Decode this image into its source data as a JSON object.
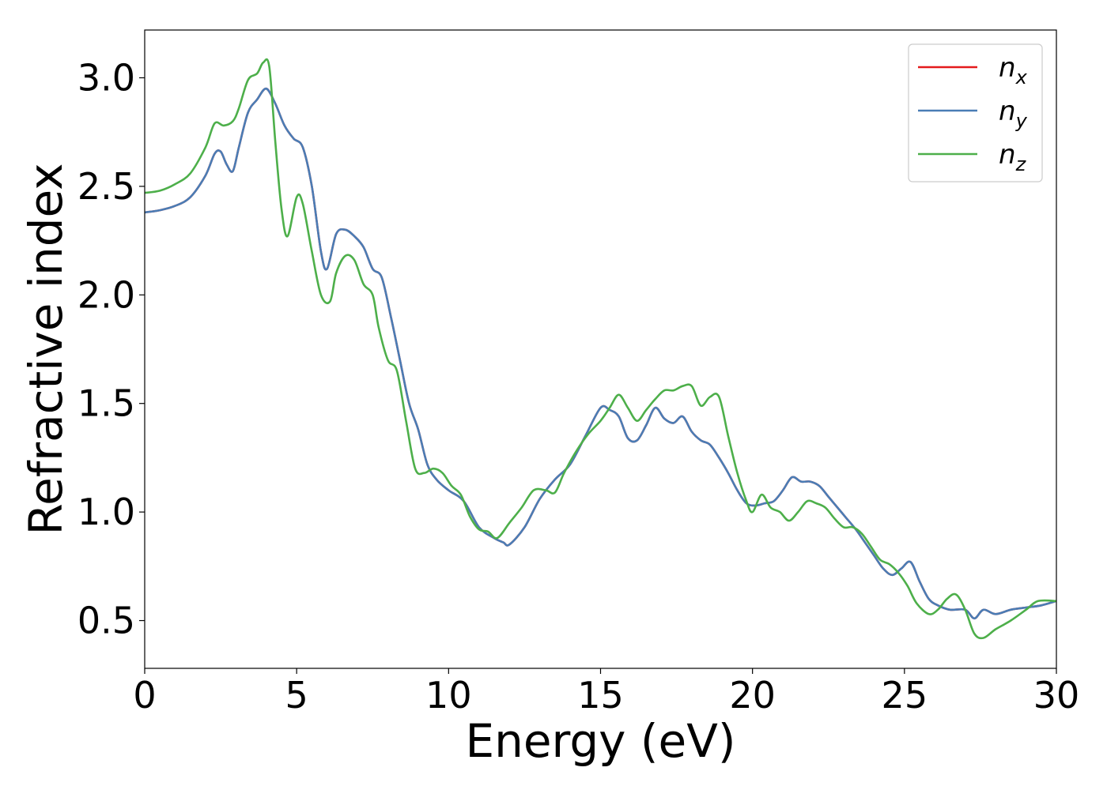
{
  "chart_data": {
    "type": "line",
    "xlabel": "Energy (eV)",
    "ylabel": "Refractive index",
    "xlim": [
      0,
      30
    ],
    "ylim": [
      0.28,
      3.22
    ],
    "xticks": [
      "0",
      "5",
      "10",
      "15",
      "20",
      "25",
      "30"
    ],
    "yticks": [
      "0.5",
      "1.0",
      "1.5",
      "2.0",
      "2.5",
      "3.0"
    ],
    "grid": false,
    "legend_position": "top-right",
    "series": [
      {
        "name": "n",
        "subscript": "x",
        "color": "#e41a1c",
        "x": [
          0,
          0.5,
          1.0,
          1.5,
          2.0,
          2.3,
          2.5,
          2.7,
          2.9,
          3.1,
          3.4,
          3.7,
          4.0,
          4.3,
          4.6,
          4.9,
          5.2,
          5.5,
          5.8,
          6.0,
          6.3,
          6.6,
          6.9,
          7.2,
          7.5,
          7.8,
          8.1,
          8.4,
          8.7,
          9.0,
          9.3,
          9.6,
          10.0,
          10.5,
          11.0,
          11.5,
          11.8,
          12.0,
          12.5,
          13.0,
          13.5,
          14.0,
          14.5,
          15.0,
          15.3,
          15.6,
          15.9,
          16.2,
          16.5,
          16.8,
          17.1,
          17.4,
          17.7,
          18.0,
          18.3,
          18.6,
          18.9,
          19.2,
          19.5,
          19.8,
          20.1,
          20.4,
          20.7,
          21.0,
          21.3,
          21.6,
          21.9,
          22.2,
          22.5,
          22.8,
          23.1,
          23.4,
          23.7,
          24.0,
          24.3,
          24.6,
          24.9,
          25.2,
          25.5,
          25.8,
          26.1,
          26.5,
          27.0,
          27.3,
          27.6,
          28.0,
          28.5,
          29.0,
          29.5,
          30.0
        ],
        "y": [
          2.38,
          2.39,
          2.41,
          2.45,
          2.55,
          2.65,
          2.66,
          2.6,
          2.57,
          2.68,
          2.84,
          2.9,
          2.95,
          2.88,
          2.78,
          2.72,
          2.68,
          2.5,
          2.2,
          2.12,
          2.28,
          2.3,
          2.27,
          2.22,
          2.12,
          2.08,
          1.9,
          1.7,
          1.5,
          1.38,
          1.22,
          1.15,
          1.1,
          1.05,
          0.93,
          0.88,
          0.86,
          0.85,
          0.93,
          1.06,
          1.15,
          1.22,
          1.35,
          1.48,
          1.47,
          1.44,
          1.34,
          1.33,
          1.4,
          1.48,
          1.43,
          1.41,
          1.44,
          1.37,
          1.33,
          1.31,
          1.25,
          1.18,
          1.1,
          1.04,
          1.03,
          1.04,
          1.05,
          1.1,
          1.16,
          1.14,
          1.14,
          1.12,
          1.07,
          1.02,
          0.97,
          0.92,
          0.86,
          0.8,
          0.74,
          0.71,
          0.74,
          0.77,
          0.68,
          0.6,
          0.57,
          0.55,
          0.55,
          0.51,
          0.55,
          0.53,
          0.55,
          0.56,
          0.57,
          0.59
        ]
      },
      {
        "name": "n",
        "subscript": "y",
        "color": "#4a7db5",
        "x": [
          0,
          0.5,
          1.0,
          1.5,
          2.0,
          2.3,
          2.5,
          2.7,
          2.9,
          3.1,
          3.4,
          3.7,
          4.0,
          4.3,
          4.6,
          4.9,
          5.2,
          5.5,
          5.8,
          6.0,
          6.3,
          6.6,
          6.9,
          7.2,
          7.5,
          7.8,
          8.1,
          8.4,
          8.7,
          9.0,
          9.3,
          9.6,
          10.0,
          10.5,
          11.0,
          11.5,
          11.8,
          12.0,
          12.5,
          13.0,
          13.5,
          14.0,
          14.5,
          15.0,
          15.3,
          15.6,
          15.9,
          16.2,
          16.5,
          16.8,
          17.1,
          17.4,
          17.7,
          18.0,
          18.3,
          18.6,
          18.9,
          19.2,
          19.5,
          19.8,
          20.1,
          20.4,
          20.7,
          21.0,
          21.3,
          21.6,
          21.9,
          22.2,
          22.5,
          22.8,
          23.1,
          23.4,
          23.7,
          24.0,
          24.3,
          24.6,
          24.9,
          25.2,
          25.5,
          25.8,
          26.1,
          26.5,
          27.0,
          27.3,
          27.6,
          28.0,
          28.5,
          29.0,
          29.5,
          30.0
        ],
        "y": [
          2.38,
          2.39,
          2.41,
          2.45,
          2.55,
          2.65,
          2.66,
          2.6,
          2.57,
          2.68,
          2.84,
          2.9,
          2.95,
          2.88,
          2.78,
          2.72,
          2.68,
          2.5,
          2.2,
          2.12,
          2.28,
          2.3,
          2.27,
          2.22,
          2.12,
          2.08,
          1.9,
          1.7,
          1.5,
          1.38,
          1.22,
          1.15,
          1.1,
          1.05,
          0.93,
          0.88,
          0.86,
          0.85,
          0.93,
          1.06,
          1.15,
          1.22,
          1.35,
          1.48,
          1.47,
          1.44,
          1.34,
          1.33,
          1.4,
          1.48,
          1.43,
          1.41,
          1.44,
          1.37,
          1.33,
          1.31,
          1.25,
          1.18,
          1.1,
          1.04,
          1.03,
          1.04,
          1.05,
          1.1,
          1.16,
          1.14,
          1.14,
          1.12,
          1.07,
          1.02,
          0.97,
          0.92,
          0.86,
          0.8,
          0.74,
          0.71,
          0.74,
          0.77,
          0.68,
          0.6,
          0.57,
          0.55,
          0.55,
          0.51,
          0.55,
          0.53,
          0.55,
          0.56,
          0.57,
          0.59
        ]
      },
      {
        "name": "n",
        "subscript": "z",
        "color": "#4daf4a",
        "x": [
          0,
          0.5,
          1.0,
          1.5,
          2.0,
          2.3,
          2.6,
          2.9,
          3.1,
          3.4,
          3.7,
          3.9,
          4.1,
          4.3,
          4.5,
          4.7,
          5.0,
          5.2,
          5.5,
          5.8,
          6.1,
          6.3,
          6.6,
          6.9,
          7.2,
          7.5,
          7.7,
          8.0,
          8.3,
          8.6,
          8.9,
          9.2,
          9.5,
          9.8,
          10.1,
          10.4,
          10.7,
          11.0,
          11.3,
          11.6,
          12.0,
          12.4,
          12.8,
          13.2,
          13.5,
          13.8,
          14.2,
          14.6,
          15.0,
          15.3,
          15.6,
          15.9,
          16.2,
          16.5,
          16.8,
          17.1,
          17.4,
          17.7,
          18.0,
          18.3,
          18.6,
          18.9,
          19.2,
          19.5,
          19.8,
          20.0,
          20.3,
          20.6,
          20.9,
          21.2,
          21.5,
          21.8,
          22.1,
          22.4,
          22.7,
          23.0,
          23.3,
          23.6,
          23.9,
          24.2,
          24.5,
          24.8,
          25.1,
          25.4,
          25.8,
          26.1,
          26.4,
          26.7,
          27.0,
          27.3,
          27.6,
          28.0,
          28.5,
          29.0,
          29.4,
          30.0
        ],
        "y": [
          2.47,
          2.48,
          2.51,
          2.56,
          2.68,
          2.79,
          2.78,
          2.8,
          2.86,
          2.99,
          3.02,
          3.07,
          3.05,
          2.7,
          2.4,
          2.27,
          2.45,
          2.42,
          2.2,
          2.0,
          1.97,
          2.1,
          2.18,
          2.16,
          2.05,
          2.0,
          1.85,
          1.7,
          1.65,
          1.42,
          1.2,
          1.18,
          1.2,
          1.18,
          1.12,
          1.08,
          0.98,
          0.92,
          0.91,
          0.88,
          0.95,
          1.02,
          1.1,
          1.1,
          1.09,
          1.18,
          1.28,
          1.36,
          1.42,
          1.48,
          1.54,
          1.48,
          1.42,
          1.47,
          1.52,
          1.56,
          1.56,
          1.58,
          1.58,
          1.49,
          1.53,
          1.53,
          1.35,
          1.18,
          1.05,
          1.0,
          1.08,
          1.02,
          1.0,
          0.96,
          1.0,
          1.05,
          1.04,
          1.02,
          0.97,
          0.93,
          0.93,
          0.9,
          0.84,
          0.78,
          0.76,
          0.72,
          0.66,
          0.58,
          0.53,
          0.55,
          0.6,
          0.62,
          0.55,
          0.44,
          0.42,
          0.46,
          0.5,
          0.55,
          0.59,
          0.59
        ]
      }
    ]
  }
}
